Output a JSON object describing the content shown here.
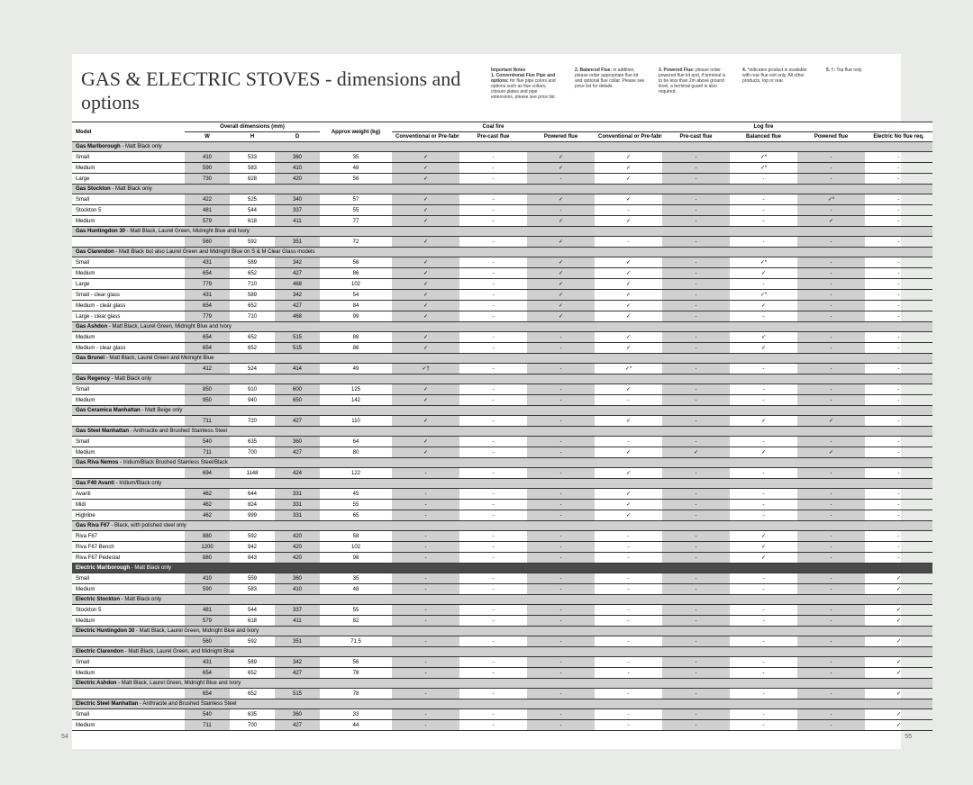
{
  "title": "GAS & ELECTRIC STOVES - dimensions and options",
  "notes_heading": "Important Notes",
  "notes": {
    "n1": "1. Conventional Flue Pipe and options:",
    "n1_text": "for flue pipe colors and options such as flue collars, closure plates and pipe extensions, please see price list.",
    "n2": "2. Balanced Flue:",
    "n2_text": "in addition, please order appropriate flue kit and optional flue collar. Please see price list for details.",
    "n3": "3. Powered Flue:",
    "n3_text": "please order powered flue kit and, if terminal is to be less than 2m above ground level, a terminal guard is also required.",
    "n4": "4.",
    "n4_text": "*indicates product is available with rear flue exit only. All other products, top or rear.",
    "n5": "5. †:",
    "n5_text": "Top flue only."
  },
  "headers": {
    "model": "Model",
    "overall": "Overall dimensions (mm)",
    "weight": "Approx weight (kg)",
    "coal": "Coal fire",
    "log": "Log fire",
    "w": "W",
    "h": "H",
    "d": "D",
    "conv_pre": "Conventional or Pre-fabricated flue",
    "precast": "Pre-cast flue",
    "powered": "Powered flue",
    "conv_pre2": "Conventional or Pre-fabricated",
    "precast2": "Pre-cast flue",
    "balanced": "Balanced flue",
    "powered2": "Powered flue",
    "electric": "Electric No flue req."
  },
  "page_left": "54",
  "page_right": "55",
  "sections": [
    {
      "title": "Gas Marlborough",
      "note": " - Matt Black only",
      "rows": [
        {
          "m": "Small",
          "w": "410",
          "h": "533",
          "d": "360",
          "wt": "35",
          "c1": "✓",
          "c2": "-",
          "c3": "✓",
          "c4": "✓",
          "c5": "-",
          "c6": "✓*",
          "c7": "-",
          "c8": "-"
        },
        {
          "m": "Medium",
          "w": "590",
          "h": "583",
          "d": "410",
          "wt": "48",
          "c1": "✓",
          "c2": "-",
          "c3": "✓",
          "c4": "✓",
          "c5": "-",
          "c6": "✓*",
          "c7": "-",
          "c8": "-"
        },
        {
          "m": "Large",
          "w": "730",
          "h": "628",
          "d": "420",
          "wt": "56",
          "c1": "✓",
          "c2": "-",
          "c3": "-",
          "c4": "✓",
          "c5": "-",
          "c6": "-",
          "c7": "-",
          "c8": "-"
        }
      ]
    },
    {
      "title": "Gas Stockton",
      "note": " - Matt Black only",
      "rows": [
        {
          "m": "Small",
          "w": "422",
          "h": "525",
          "d": "340",
          "wt": "57",
          "c1": "✓",
          "c2": "-",
          "c3": "✓",
          "c4": "✓",
          "c5": "-",
          "c6": "-",
          "c7": "✓*",
          "c8": "-"
        },
        {
          "m": "Stockton 5",
          "w": "481",
          "h": "544",
          "d": "337",
          "wt": "55",
          "c1": "✓",
          "c2": "-",
          "c3": "-",
          "c4": "-",
          "c5": "-",
          "c6": "-",
          "c7": "-",
          "c8": "-"
        },
        {
          "m": "Medium",
          "w": "579",
          "h": "618",
          "d": "411",
          "wt": "77",
          "c1": "✓",
          "c2": "-",
          "c3": "✓",
          "c4": "✓",
          "c5": "-",
          "c6": "-",
          "c7": "✓",
          "c8": "-"
        }
      ]
    },
    {
      "title": "Gas Huntingdon 30",
      "note": " - Matt Black, Laurel Green, Midnight Blue and Ivory",
      "rows": [
        {
          "m": "",
          "w": "560",
          "h": "592",
          "d": "351",
          "wt": "72",
          "c1": "✓",
          "c2": "-",
          "c3": "✓",
          "c4": "-",
          "c5": "-",
          "c6": "-",
          "c7": "-",
          "c8": "-"
        }
      ]
    },
    {
      "title": "Gas Clarendon",
      "note": " - Matt Black but also Laurel Green and Midnight Blue on S & M Clear Glass models",
      "rows": [
        {
          "m": "Small",
          "w": "431",
          "h": "589",
          "d": "342",
          "wt": "56",
          "c1": "✓",
          "c2": "-",
          "c3": "✓",
          "c4": "✓",
          "c5": "-",
          "c6": "✓*",
          "c7": "-",
          "c8": "-"
        },
        {
          "m": "Medium",
          "w": "654",
          "h": "652",
          "d": "427",
          "wt": "86",
          "c1": "✓",
          "c2": "-",
          "c3": "✓",
          "c4": "✓",
          "c5": "-",
          "c6": "✓",
          "c7": "-",
          "c8": "-"
        },
        {
          "m": "Large",
          "w": "779",
          "h": "710",
          "d": "468",
          "wt": "102",
          "c1": "✓",
          "c2": "-",
          "c3": "✓",
          "c4": "✓",
          "c5": "-",
          "c6": "-",
          "c7": "-",
          "c8": "-"
        },
        {
          "m": "Small - clear glass",
          "w": "431",
          "h": "589",
          "d": "342",
          "wt": "54",
          "c1": "✓",
          "c2": "-",
          "c3": "✓",
          "c4": "✓",
          "c5": "-",
          "c6": "✓*",
          "c7": "-",
          "c8": "-"
        },
        {
          "m": "Medium - clear glass",
          "w": "654",
          "h": "652",
          "d": "427",
          "wt": "84",
          "c1": "✓",
          "c2": "-",
          "c3": "✓",
          "c4": "✓",
          "c5": "-",
          "c6": "✓",
          "c7": "-",
          "c8": "-"
        },
        {
          "m": "Large - clear glass",
          "w": "779",
          "h": "710",
          "d": "468",
          "wt": "99",
          "c1": "✓",
          "c2": "-",
          "c3": "✓",
          "c4": "✓",
          "c5": "-",
          "c6": "-",
          "c7": "-",
          "c8": "-"
        }
      ]
    },
    {
      "title": "Gas Ashdon",
      "note": " - Matt Black, Laurel Green, Midnight Blue and Ivory",
      "rows": [
        {
          "m": "Medium",
          "w": "654",
          "h": "652",
          "d": "515",
          "wt": "88",
          "c1": "✓",
          "c2": "-",
          "c3": "-",
          "c4": "✓",
          "c5": "-",
          "c6": "✓",
          "c7": "-",
          "c8": "-"
        },
        {
          "m": "Medium - clear glass",
          "w": "654",
          "h": "652",
          "d": "515",
          "wt": "86",
          "c1": "✓",
          "c2": "-",
          "c3": "-",
          "c4": "✓",
          "c5": "-",
          "c6": "✓",
          "c7": "-",
          "c8": "-"
        }
      ]
    },
    {
      "title": "Gas Brunel",
      "note": " - Matt Black, Laurel Green and Midnight Blue",
      "rows": [
        {
          "m": "",
          "w": "412",
          "h": "524",
          "d": "414",
          "wt": "49",
          "c1": "✓†",
          "c2": "-",
          "c3": "-",
          "c4": "✓*",
          "c5": "-",
          "c6": "-",
          "c7": "-",
          "c8": "-"
        }
      ]
    },
    {
      "title": "Gas Regency",
      "note": " - Matt Black only",
      "rows": [
        {
          "m": "Small",
          "w": "850",
          "h": "910",
          "d": "600",
          "wt": "125",
          "c1": "✓",
          "c2": "-",
          "c3": "-",
          "c4": "✓",
          "c5": "-",
          "c6": "-",
          "c7": "-",
          "c8": "-"
        },
        {
          "m": "Medium",
          "w": "950",
          "h": "940",
          "d": "650",
          "wt": "142",
          "c1": "✓",
          "c2": "-",
          "c3": "-",
          "c4": "-",
          "c5": "-",
          "c6": "-",
          "c7": "-",
          "c8": "-"
        }
      ]
    },
    {
      "title": "Gas Ceramica Manhattan",
      "note": " - Matt Beige only",
      "rows": [
        {
          "m": "",
          "w": "711",
          "h": "720",
          "d": "427",
          "wt": "110",
          "c1": "✓",
          "c2": "-",
          "c3": "-",
          "c4": "✓",
          "c5": "-",
          "c6": "✓",
          "c7": "✓",
          "c8": "-"
        }
      ]
    },
    {
      "title": "Gas Steel Manhattan",
      "note": " - Anthracite and Brushed Stainless Steel",
      "rows": [
        {
          "m": "Small",
          "w": "540",
          "h": "635",
          "d": "360",
          "wt": "64",
          "c1": "✓",
          "c2": "-",
          "c3": "-",
          "c4": "-",
          "c5": "-",
          "c6": "-",
          "c7": "-",
          "c8": "-"
        },
        {
          "m": "Medium",
          "w": "711",
          "h": "700",
          "d": "427",
          "wt": "80",
          "c1": "✓",
          "c2": "-",
          "c3": "-",
          "c4": "✓",
          "c5": "✓",
          "c6": "✓",
          "c7": "✓",
          "c8": "-"
        }
      ]
    },
    {
      "title": "Gas Riva Nemos",
      "note": " - Iridium/Black Brushed Stainless Steel/Black",
      "rows": [
        {
          "m": "",
          "w": "694",
          "h": "1148",
          "d": "424",
          "wt": "122",
          "c1": "-",
          "c2": "-",
          "c3": "-",
          "c4": "✓",
          "c5": "-",
          "c6": "-",
          "c7": "-",
          "c8": "-"
        }
      ]
    },
    {
      "title": "Gas F40 Avanti",
      "note": " - Iridium/Black only",
      "rows": [
        {
          "m": "Avanti",
          "w": "462",
          "h": "644",
          "d": "331",
          "wt": "45",
          "c1": "-",
          "c2": "-",
          "c3": "-",
          "c4": "✓",
          "c5": "-",
          "c6": "-",
          "c7": "-",
          "c8": "-"
        },
        {
          "m": "Midi",
          "w": "462",
          "h": "824",
          "d": "331",
          "wt": "55",
          "c1": "-",
          "c2": "-",
          "c3": "-",
          "c4": "✓",
          "c5": "-",
          "c6": "-",
          "c7": "-",
          "c8": "-"
        },
        {
          "m": "Highline",
          "w": "462",
          "h": "999",
          "d": "331",
          "wt": "65",
          "c1": "-",
          "c2": "-",
          "c3": "-",
          "c4": "✓",
          "c5": "-",
          "c6": "-",
          "c7": "-",
          "c8": "-"
        }
      ]
    },
    {
      "title": "Gas Riva F67",
      "note": " - Black, with polished steel only",
      "rows": [
        {
          "m": "Riva F67",
          "w": "880",
          "h": "592",
          "d": "420",
          "wt": "58",
          "c1": "-",
          "c2": "-",
          "c3": "-",
          "c4": "-",
          "c5": "-",
          "c6": "✓",
          "c7": "-",
          "c8": "-"
        },
        {
          "m": "Riva F67 Bench",
          "w": "1200",
          "h": "942",
          "d": "420",
          "wt": "102",
          "c1": "-",
          "c2": "-",
          "c3": "-",
          "c4": "-",
          "c5": "-",
          "c6": "✓",
          "c7": "-",
          "c8": "-"
        },
        {
          "m": "Riva F67 Pedestal",
          "w": "880",
          "h": "843",
          "d": "420",
          "wt": "98",
          "c1": "-",
          "c2": "-",
          "c3": "-",
          "c4": "-",
          "c5": "-",
          "c6": "✓",
          "c7": "-",
          "c8": "-"
        }
      ]
    },
    {
      "title": "Electric Marlborough",
      "note": " - Matt Black only",
      "dark": true,
      "rows": [
        {
          "m": "Small",
          "w": "410",
          "h": "559",
          "d": "360",
          "wt": "35",
          "c1": "-",
          "c2": "-",
          "c3": "-",
          "c4": "-",
          "c5": "-",
          "c6": "-",
          "c7": "-",
          "c8": "✓"
        },
        {
          "m": "Medium",
          "w": "590",
          "h": "583",
          "d": "410",
          "wt": "48",
          "c1": "-",
          "c2": "-",
          "c3": "-",
          "c4": "-",
          "c5": "-",
          "c6": "-",
          "c7": "-",
          "c8": "✓"
        }
      ]
    },
    {
      "title": "Electric Stockton",
      "note": " - Matt Black only",
      "rows": [
        {
          "m": "Stockton 5",
          "w": "481",
          "h": "544",
          "d": "337",
          "wt": "55",
          "c1": "-",
          "c2": "-",
          "c3": "-",
          "c4": "-",
          "c5": "-",
          "c6": "-",
          "c7": "-",
          "c8": "✓"
        },
        {
          "m": "Medium",
          "w": "579",
          "h": "618",
          "d": "411",
          "wt": "82",
          "c1": "-",
          "c2": "-",
          "c3": "-",
          "c4": "-",
          "c5": "-",
          "c6": "-",
          "c7": "-",
          "c8": "✓"
        }
      ]
    },
    {
      "title": "Electric Huntingdon 30",
      "note": " - Matt Black, Laurel Green, Midnight Blue and Ivory",
      "rows": [
        {
          "m": "",
          "w": "560",
          "h": "592",
          "d": "351",
          "wt": "71.5",
          "c1": "-",
          "c2": "-",
          "c3": "-",
          "c4": "-",
          "c5": "-",
          "c6": "-",
          "c7": "-",
          "c8": "✓"
        }
      ]
    },
    {
      "title": "Electric Clarendon",
      "note": " - Matt Black, Laurel Green, and Midnight Blue",
      "rows": [
        {
          "m": "Small",
          "w": "431",
          "h": "589",
          "d": "342",
          "wt": "56",
          "c1": "-",
          "c2": "-",
          "c3": "-",
          "c4": "-",
          "c5": "-",
          "c6": "-",
          "c7": "-",
          "c8": "✓"
        },
        {
          "m": "Medium",
          "w": "654",
          "h": "652",
          "d": "427",
          "wt": "78",
          "c1": "-",
          "c2": "-",
          "c3": "-",
          "c4": "-",
          "c5": "-",
          "c6": "-",
          "c7": "-",
          "c8": "✓"
        }
      ]
    },
    {
      "title": "Electric Ashdon",
      "note": " - Matt Black, Laurel Green, Midnight Blue and Ivory",
      "rows": [
        {
          "m": "",
          "w": "654",
          "h": "652",
          "d": "515",
          "wt": "78",
          "c1": "-",
          "c2": "-",
          "c3": "-",
          "c4": "-",
          "c5": "-",
          "c6": "-",
          "c7": "-",
          "c8": "✓"
        }
      ]
    },
    {
      "title": "Electric Steel Manhattan",
      "note": " - Anthracite and Brushed Stainless Steel",
      "rows": [
        {
          "m": "Small",
          "w": "540",
          "h": "635",
          "d": "360",
          "wt": "33",
          "c1": "-",
          "c2": "-",
          "c3": "-",
          "c4": "-",
          "c5": "-",
          "c6": "-",
          "c7": "-",
          "c8": "✓"
        },
        {
          "m": "Medium",
          "w": "711",
          "h": "700",
          "d": "427",
          "wt": "44",
          "c1": "-",
          "c2": "-",
          "c3": "-",
          "c4": "-",
          "c5": "-",
          "c6": "-",
          "c7": "-",
          "c8": "✓"
        }
      ]
    }
  ]
}
